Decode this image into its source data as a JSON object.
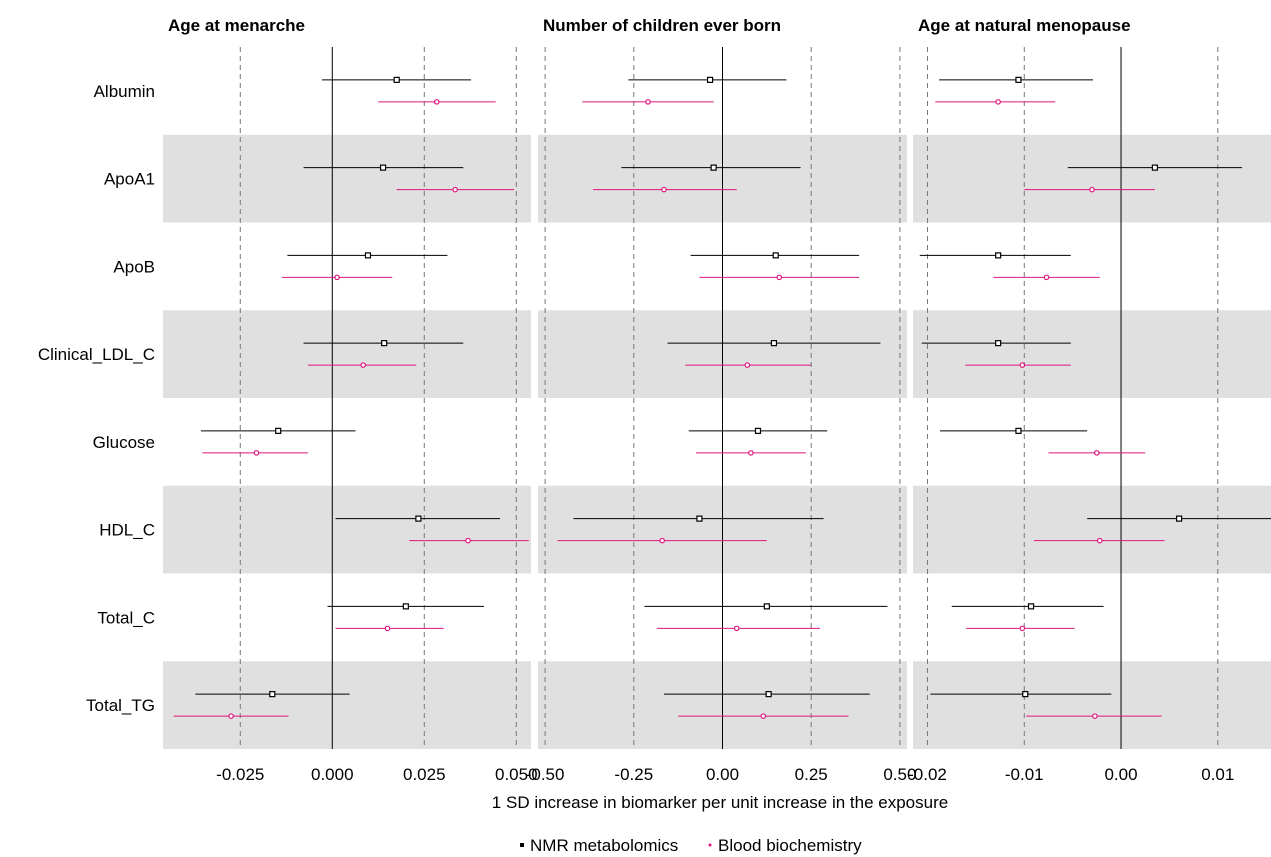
{
  "chart_data": {
    "type": "forest",
    "xlabel": "1 SD increase in biomarker per unit increase in the exposure",
    "rows": [
      "Albumin",
      "ApoA1",
      "ApoB",
      "Clinical_LDL_C",
      "Glucose",
      "HDL_C",
      "Total_C",
      "Total_TG"
    ],
    "legend": {
      "position": "bottom",
      "items": [
        {
          "label": "NMR metabolomics",
          "color": "#000000"
        },
        {
          "label": "Blood biochemistry",
          "color": "#e0147f"
        }
      ]
    },
    "grid": "dashed vertical lines at major ticks; alternating grey row bands",
    "panels": [
      {
        "title": "Age at menarche",
        "xlim": [
          -0.046,
          0.054
        ],
        "ticks": [
          -0.025,
          0.0,
          0.025,
          0.05
        ],
        "tick_labels": [
          "-0.025",
          "0.000",
          "0.025",
          "0.050"
        ],
        "series": [
          {
            "name": "NMR metabolomics",
            "points": [
              {
                "row": "Albumin",
                "est": 0.0175,
                "lo": -0.0028,
                "hi": 0.0377
              },
              {
                "row": "ApoA1",
                "est": 0.0138,
                "lo": -0.0078,
                "hi": 0.0356
              },
              {
                "row": "ApoB",
                "est": 0.0097,
                "lo": -0.0122,
                "hi": 0.0313
              },
              {
                "row": "Clinical_LDL_C",
                "est": 0.0141,
                "lo": -0.0078,
                "hi": 0.0356
              },
              {
                "row": "Glucose",
                "est": -0.0147,
                "lo": -0.0357,
                "hi": 0.0063
              },
              {
                "row": "HDL_C",
                "est": 0.0234,
                "lo": 0.0009,
                "hi": 0.0456
              },
              {
                "row": "Total_C",
                "est": 0.02,
                "lo": -0.0013,
                "hi": 0.0412
              },
              {
                "row": "Total_TG",
                "est": -0.0163,
                "lo": -0.0372,
                "hi": 0.0047
              }
            ]
          },
          {
            "name": "Blood biochemistry",
            "points": [
              {
                "row": "Albumin",
                "est": 0.0284,
                "lo": 0.0125,
                "hi": 0.0444
              },
              {
                "row": "ApoA1",
                "est": 0.0334,
                "lo": 0.0175,
                "hi": 0.0494
              },
              {
                "row": "ApoB",
                "est": 0.0013,
                "lo": -0.0137,
                "hi": 0.0163
              },
              {
                "row": "Clinical_LDL_C",
                "est": 0.0084,
                "lo": -0.0066,
                "hi": 0.0228
              },
              {
                "row": "Glucose",
                "est": -0.0206,
                "lo": -0.0353,
                "hi": -0.0066
              },
              {
                "row": "HDL_C",
                "est": 0.0369,
                "lo": 0.0209,
                "hi": 0.0534
              },
              {
                "row": "Total_C",
                "est": 0.015,
                "lo": 0.0009,
                "hi": 0.0303
              },
              {
                "row": "Total_TG",
                "est": -0.0275,
                "lo": -0.0431,
                "hi": -0.0119
              }
            ]
          }
        ]
      },
      {
        "title": "Number of children ever born",
        "xlim": [
          -0.52,
          0.52
        ],
        "ticks": [
          -0.5,
          -0.25,
          0.0,
          0.25,
          0.5
        ],
        "tick_labels": [
          "-0.50",
          "-0.25",
          "0.00",
          "0.25",
          "0.50"
        ],
        "series": [
          {
            "name": "NMR metabolomics",
            "points": [
              {
                "row": "Albumin",
                "est": -0.035,
                "lo": -0.265,
                "hi": 0.18
              },
              {
                "row": "ApoA1",
                "est": -0.025,
                "lo": -0.285,
                "hi": 0.22
              },
              {
                "row": "ApoB",
                "est": 0.15,
                "lo": -0.09,
                "hi": 0.385
              },
              {
                "row": "Clinical_LDL_C",
                "est": 0.145,
                "lo": -0.155,
                "hi": 0.445
              },
              {
                "row": "Glucose",
                "est": 0.1,
                "lo": -0.095,
                "hi": 0.295
              },
              {
                "row": "HDL_C",
                "est": -0.065,
                "lo": -0.42,
                "hi": 0.285
              },
              {
                "row": "Total_C",
                "est": 0.125,
                "lo": -0.22,
                "hi": 0.465
              },
              {
                "row": "Total_TG",
                "est": 0.13,
                "lo": -0.165,
                "hi": 0.415
              }
            ]
          },
          {
            "name": "Blood biochemistry",
            "points": [
              {
                "row": "Albumin",
                "est": -0.21,
                "lo": -0.395,
                "hi": -0.025
              },
              {
                "row": "ApoA1",
                "est": -0.165,
                "lo": -0.365,
                "hi": 0.04
              },
              {
                "row": "ApoB",
                "est": 0.16,
                "lo": -0.065,
                "hi": 0.385
              },
              {
                "row": "Clinical_LDL_C",
                "est": 0.07,
                "lo": -0.105,
                "hi": 0.25
              },
              {
                "row": "Glucose",
                "est": 0.08,
                "lo": -0.075,
                "hi": 0.235
              },
              {
                "row": "HDL_C",
                "est": -0.17,
                "lo": -0.465,
                "hi": 0.125
              },
              {
                "row": "Total_C",
                "est": 0.04,
                "lo": -0.185,
                "hi": 0.275
              },
              {
                "row": "Total_TG",
                "est": 0.115,
                "lo": -0.125,
                "hi": 0.355
              }
            ]
          }
        ]
      },
      {
        "title": "Age at natural menopause",
        "xlim": [
          -0.0215,
          0.0155
        ],
        "ticks": [
          -0.02,
          -0.01,
          0.0,
          0.01
        ],
        "tick_labels": [
          "-0.02",
          "-0.01",
          "0.00",
          "0.01"
        ],
        "series": [
          {
            "name": "NMR metabolomics",
            "points": [
              {
                "row": "Albumin",
                "est": -0.0106,
                "lo": -0.0188,
                "hi": -0.0029
              },
              {
                "row": "ApoA1",
                "est": 0.0035,
                "lo": -0.0055,
                "hi": 0.0125
              },
              {
                "row": "ApoB",
                "est": -0.0127,
                "lo": -0.0208,
                "hi": -0.0052
              },
              {
                "row": "Clinical_LDL_C",
                "est": -0.0127,
                "lo": -0.0206,
                "hi": -0.0052
              },
              {
                "row": "Glucose",
                "est": -0.0106,
                "lo": -0.0187,
                "hi": -0.0035
              },
              {
                "row": "HDL_C",
                "est": 0.006,
                "lo": -0.0035,
                "hi": 0.0155
              },
              {
                "row": "Total_C",
                "est": -0.0093,
                "lo": -0.0175,
                "hi": -0.0018
              },
              {
                "row": "Total_TG",
                "est": -0.0099,
                "lo": -0.0197,
                "hi": -0.001
              }
            ]
          },
          {
            "name": "Blood biochemistry",
            "points": [
              {
                "row": "Albumin",
                "est": -0.0127,
                "lo": -0.0192,
                "hi": -0.0068
              },
              {
                "row": "ApoA1",
                "est": -0.003,
                "lo": -0.01,
                "hi": 0.0035
              },
              {
                "row": "ApoB",
                "est": -0.0077,
                "lo": -0.0132,
                "hi": -0.0022
              },
              {
                "row": "Clinical_LDL_C",
                "est": -0.0102,
                "lo": -0.0161,
                "hi": -0.0052
              },
              {
                "row": "Glucose",
                "est": -0.0025,
                "lo": -0.0075,
                "hi": 0.0025
              },
              {
                "row": "HDL_C",
                "est": -0.0022,
                "lo": -0.009,
                "hi": 0.0045
              },
              {
                "row": "Total_C",
                "est": -0.0102,
                "lo": -0.016,
                "hi": -0.0048
              },
              {
                "row": "Total_TG",
                "est": -0.0027,
                "lo": -0.0098,
                "hi": 0.0042
              }
            ]
          }
        ]
      }
    ]
  }
}
